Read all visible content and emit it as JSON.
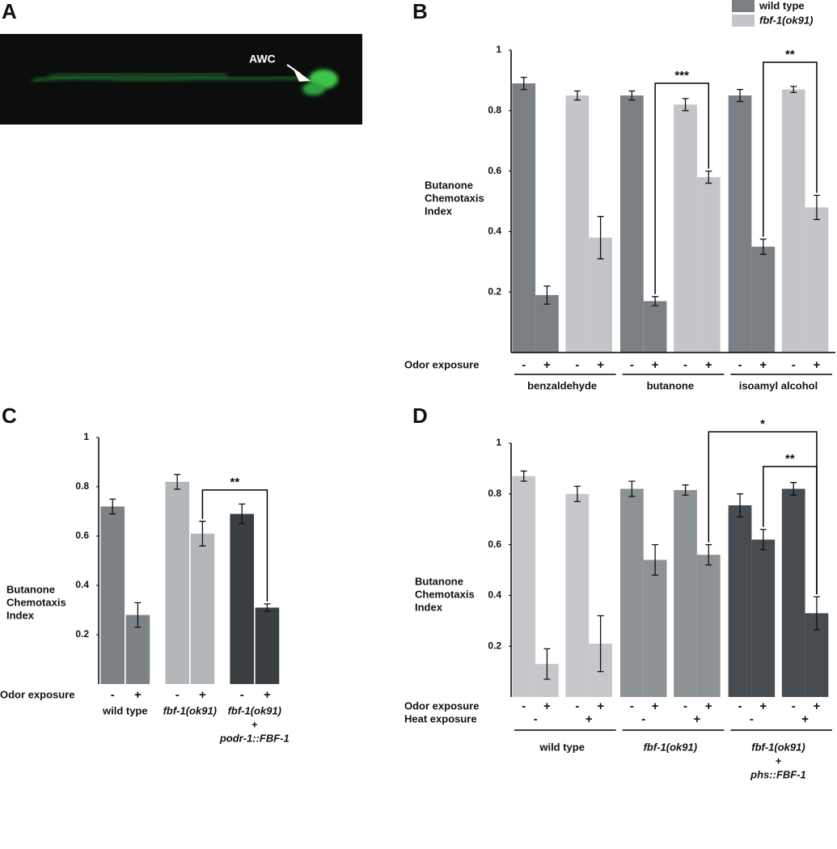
{
  "figure": {
    "panels": [
      "A",
      "B",
      "C",
      "D"
    ],
    "image_annotation": "AWC"
  },
  "chart_data": [
    {
      "type": "bar",
      "ylabel": [
        "Butanone",
        "Chemotaxis",
        "Index"
      ],
      "ylim": [
        0,
        1
      ],
      "yticks": [
        0.2,
        0.4,
        0.6,
        0.8,
        1
      ],
      "rows": [
        {
          "label": "Odor exposure",
          "values": [
            "-",
            "+",
            "-",
            "+",
            "-",
            "+",
            "-",
            "+",
            "-",
            "+",
            "-",
            "+"
          ]
        }
      ],
      "groups": [
        "benzaldehyde",
        "butanone",
        "isoamyl alcohol"
      ],
      "series": [
        {
          "name": "wild type",
          "color": "#7a8084",
          "values": [
            0.89,
            0.19,
            null,
            null,
            0.85,
            0.17,
            null,
            null,
            0.85,
            0.35,
            null,
            null
          ],
          "errors": [
            0.02,
            0.03,
            null,
            null,
            0.015,
            0.015,
            null,
            null,
            0.02,
            0.025,
            null,
            null
          ]
        },
        {
          "name": "fbf-1(ok91)",
          "color": "#c3c5c8",
          "values": [
            null,
            null,
            0.85,
            0.38,
            null,
            null,
            0.82,
            0.58,
            null,
            null,
            0.87,
            0.48
          ],
          "errors": [
            null,
            null,
            0.015,
            0.07,
            null,
            null,
            0.02,
            0.02,
            null,
            null,
            0.01,
            0.04
          ]
        }
      ],
      "annotations": [
        "***",
        "**"
      ]
    },
    {
      "type": "bar",
      "ylabel": [
        "Butanone",
        "Chemotaxis",
        "Index"
      ],
      "ylim": [
        0,
        1
      ],
      "yticks": [
        0.2,
        0.4,
        0.6,
        0.8,
        1
      ],
      "rows": [
        {
          "label": "Odor exposure",
          "values": [
            "-",
            "+",
            "-",
            "+",
            "-",
            "+"
          ]
        }
      ],
      "groups": [
        [
          "wild type"
        ],
        [
          "fbf-1(ok91)"
        ],
        [
          "fbf-1(ok91)",
          "+",
          "podr-1::FBF-1"
        ]
      ],
      "series": [
        {
          "color": "#7c8285",
          "values": [
            0.72,
            0.28,
            null,
            null,
            null,
            null
          ],
          "errors": [
            0.03,
            0.05,
            null,
            null,
            null,
            null
          ]
        },
        {
          "color": "#b4b7ba",
          "values": [
            null,
            null,
            0.82,
            0.61,
            null,
            null
          ],
          "errors": [
            null,
            null,
            0.03,
            0.05,
            null,
            null
          ]
        },
        {
          "color": "#393e41",
          "values": [
            null,
            null,
            null,
            null,
            0.69,
            0.31
          ],
          "errors": [
            null,
            null,
            null,
            null,
            0.04,
            0.015
          ]
        }
      ],
      "annotations": [
        "**"
      ]
    },
    {
      "type": "bar",
      "ylabel": [
        "Butanone",
        "Chemotaxis",
        "Index"
      ],
      "ylim": [
        0,
        1
      ],
      "yticks": [
        0.2,
        0.4,
        0.6,
        0.8,
        1
      ],
      "rows": [
        {
          "label": "Odor exposure",
          "values": [
            "-",
            "+",
            "-",
            "+",
            "-",
            "+",
            "-",
            "+",
            "-",
            "+",
            "-",
            "+"
          ]
        },
        {
          "label": "Heat exposure",
          "values": [
            "-",
            "+",
            "-",
            "+",
            "-",
            "+"
          ]
        }
      ],
      "groups": [
        [
          "wild type"
        ],
        [
          "fbf-1(ok91)"
        ],
        [
          "fbf-1(ok91)",
          "+",
          "phs::FBF-1"
        ]
      ],
      "series": [
        {
          "color": "#c5c7ca",
          "values": [
            0.87,
            0.13,
            0.8,
            0.21,
            null,
            null,
            null,
            null,
            null,
            null,
            null,
            null
          ],
          "errors": [
            0.02,
            0.06,
            0.03,
            0.11,
            null,
            null,
            null,
            null,
            null,
            null,
            null,
            null
          ]
        },
        {
          "color": "#8d9294",
          "values": [
            null,
            null,
            null,
            null,
            0.82,
            0.54,
            0.815,
            0.56,
            null,
            null,
            null,
            null
          ],
          "errors": [
            null,
            null,
            null,
            null,
            0.03,
            0.06,
            0.02,
            0.04,
            null,
            null,
            null,
            null
          ]
        },
        {
          "color": "#464c50",
          "values": [
            null,
            null,
            null,
            null,
            null,
            null,
            null,
            null,
            0.755,
            0.62,
            0.82,
            0.33
          ],
          "errors": [
            null,
            null,
            null,
            null,
            null,
            null,
            null,
            null,
            0.045,
            0.04,
            0.025,
            0.065
          ]
        }
      ],
      "annotations": [
        "*",
        "**"
      ]
    }
  ]
}
